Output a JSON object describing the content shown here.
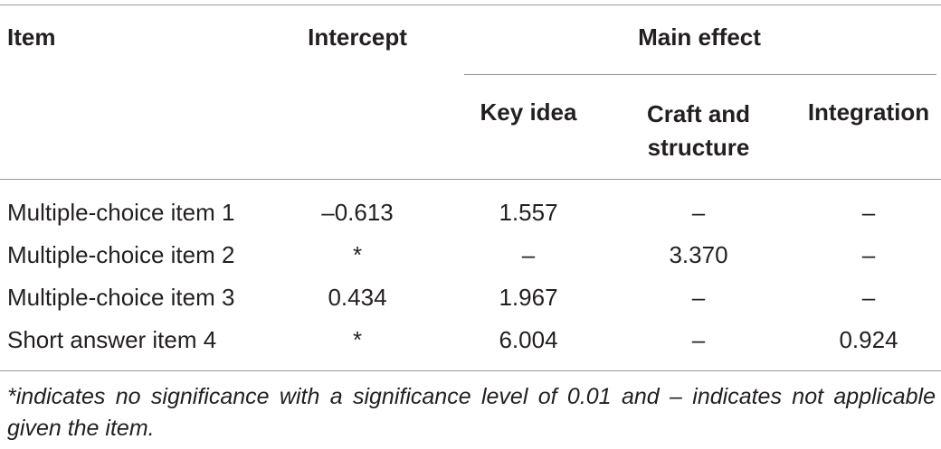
{
  "table": {
    "header": {
      "item": "Item",
      "intercept": "Intercept",
      "main_effect": "Main effect",
      "sub": [
        "Key idea",
        "Craft and structure",
        "Integration"
      ]
    },
    "rows": [
      [
        "Multiple-choice item 1",
        "–0.613",
        "1.557",
        "–",
        "–"
      ],
      [
        "Multiple-choice item 2",
        "*",
        "–",
        "3.370",
        "–"
      ],
      [
        "Multiple-choice item 3",
        "0.434",
        "1.967",
        "–",
        "–"
      ],
      [
        "Short answer item 4",
        "*",
        "6.004",
        "–",
        "0.924"
      ]
    ],
    "footnote": "*indicates no significance with a significance level of 0.01 and – indicates not applicable given the item."
  }
}
